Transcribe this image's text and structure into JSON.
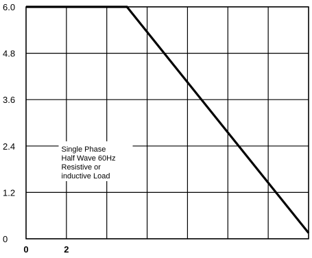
{
  "chart_data": {
    "type": "line",
    "title": "",
    "xlabel": "",
    "ylabel": "",
    "xlim": [
      0,
      14
    ],
    "ylim": [
      0,
      6.0
    ],
    "y_ticks": [
      "0",
      "1.2",
      "2.4",
      "3.6",
      "4.8",
      "6.0"
    ],
    "x_ticks": [
      "0",
      "2"
    ],
    "grid": true,
    "series": [
      {
        "x": [
          0,
          5,
          14
        ],
        "y": [
          6.0,
          6.0,
          0.15
        ]
      }
    ],
    "annotation": [
      "Single Phase",
      "Half Wave 60Hz",
      "Resistive or",
      "inductive Load"
    ]
  }
}
